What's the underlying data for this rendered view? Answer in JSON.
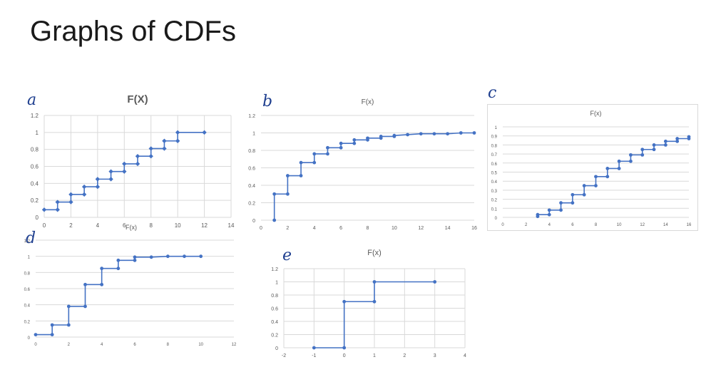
{
  "slide": {
    "title": "Graphs of CDFs"
  },
  "panel_letters": {
    "a": "a",
    "b": "b",
    "c": "c",
    "d": "d",
    "e": "e"
  },
  "colors": {
    "series": "#4472c4",
    "grid": "#d9d9d9",
    "axis_text": "#595959",
    "title_text": "#595959",
    "handwriting": "#1f3f8f"
  },
  "chart_data": [
    {
      "type": "line",
      "step": true,
      "panel": "a",
      "title": "F(X)",
      "xlim": [
        0,
        14
      ],
      "ylim": [
        0,
        1.2
      ],
      "xticks": [
        0,
        2,
        4,
        6,
        8,
        10,
        12,
        14
      ],
      "yticks": [
        0,
        0.2,
        0.4,
        0.6,
        0.8,
        1,
        1.2
      ],
      "grid": "horizontal and vertical",
      "series": [
        {
          "x": [
            0,
            1,
            1,
            2,
            2,
            3,
            3,
            4,
            4,
            5,
            5,
            6,
            6,
            7,
            7,
            8,
            8,
            9,
            9,
            10,
            10,
            12
          ],
          "y": [
            0.09,
            0.09,
            0.18,
            0.18,
            0.27,
            0.27,
            0.36,
            0.36,
            0.45,
            0.45,
            0.54,
            0.54,
            0.63,
            0.63,
            0.72,
            0.72,
            0.81,
            0.81,
            0.9,
            0.9,
            1,
            1
          ]
        }
      ]
    },
    {
      "type": "line",
      "step": true,
      "panel": "b",
      "title": "F(x)",
      "xlim": [
        0,
        16
      ],
      "ylim": [
        0,
        1.2
      ],
      "xticks": [
        0,
        2,
        4,
        6,
        8,
        10,
        12,
        14,
        16
      ],
      "yticks": [
        0,
        0.2,
        0.4,
        0.6,
        0.8,
        1,
        1.2
      ],
      "grid": "horizontal",
      "series": [
        {
          "x": [
            1,
            1,
            2,
            2,
            3,
            3,
            4,
            4,
            5,
            5,
            6,
            6,
            7,
            7,
            8,
            8,
            9,
            9,
            10,
            10,
            11,
            12,
            13,
            14,
            15,
            16
          ],
          "y": [
            0,
            0.3,
            0.3,
            0.51,
            0.51,
            0.66,
            0.66,
            0.76,
            0.76,
            0.83,
            0.83,
            0.88,
            0.88,
            0.92,
            0.92,
            0.94,
            0.94,
            0.96,
            0.96,
            0.97,
            0.98,
            0.99,
            0.99,
            0.99,
            1,
            1
          ]
        }
      ]
    },
    {
      "type": "line",
      "step": true,
      "panel": "c",
      "title": "F(x)",
      "xlim": [
        0,
        16
      ],
      "ylim": [
        0,
        1
      ],
      "xticks": [
        0,
        2,
        4,
        6,
        8,
        10,
        12,
        14,
        16
      ],
      "yticks": [
        0,
        0.1,
        0.2,
        0.3,
        0.4,
        0.5,
        0.6,
        0.7,
        0.8,
        0.9,
        1
      ],
      "grid": "horizontal",
      "series": [
        {
          "x": [
            3,
            3,
            4,
            4,
            5,
            5,
            6,
            6,
            7,
            7,
            8,
            8,
            9,
            9,
            10,
            10,
            11,
            11,
            12,
            12,
            13,
            13,
            14,
            14,
            15,
            15,
            16,
            16
          ],
          "y": [
            0.01,
            0.03,
            0.03,
            0.08,
            0.08,
            0.16,
            0.16,
            0.25,
            0.25,
            0.35,
            0.35,
            0.45,
            0.45,
            0.54,
            0.54,
            0.62,
            0.62,
            0.69,
            0.69,
            0.75,
            0.75,
            0.8,
            0.8,
            0.84,
            0.84,
            0.87,
            0.87,
            0.89
          ]
        }
      ]
    },
    {
      "type": "line",
      "step": true,
      "panel": "d",
      "title": "F(x)",
      "xlim": [
        0,
        12
      ],
      "ylim": [
        0,
        1.2
      ],
      "xticks": [
        0,
        2,
        4,
        6,
        8,
        10,
        12
      ],
      "yticks": [
        0,
        0.2,
        0.4,
        0.6,
        0.8,
        1,
        1.2
      ],
      "grid": "horizontal",
      "series": [
        {
          "x": [
            0,
            1,
            1,
            2,
            2,
            3,
            3,
            4,
            4,
            5,
            5,
            6,
            6,
            7,
            8,
            9,
            10
          ],
          "y": [
            0.03,
            0.03,
            0.15,
            0.15,
            0.38,
            0.38,
            0.65,
            0.65,
            0.85,
            0.85,
            0.95,
            0.95,
            0.99,
            0.99,
            1,
            1,
            1
          ]
        }
      ]
    },
    {
      "type": "line",
      "step": true,
      "panel": "e",
      "title": "F(x)",
      "xlim": [
        -2,
        4
      ],
      "ylim": [
        0,
        1.2
      ],
      "xticks": [
        -2,
        -1,
        0,
        1,
        2,
        3,
        4
      ],
      "yticks": [
        0,
        0.2,
        0.4,
        0.6,
        0.8,
        1,
        1.2
      ],
      "grid": "horizontal and vertical",
      "series": [
        {
          "x": [
            -1,
            0,
            0,
            1,
            1,
            3
          ],
          "y": [
            0,
            0,
            0.7,
            0.7,
            1,
            1
          ]
        }
      ]
    }
  ]
}
